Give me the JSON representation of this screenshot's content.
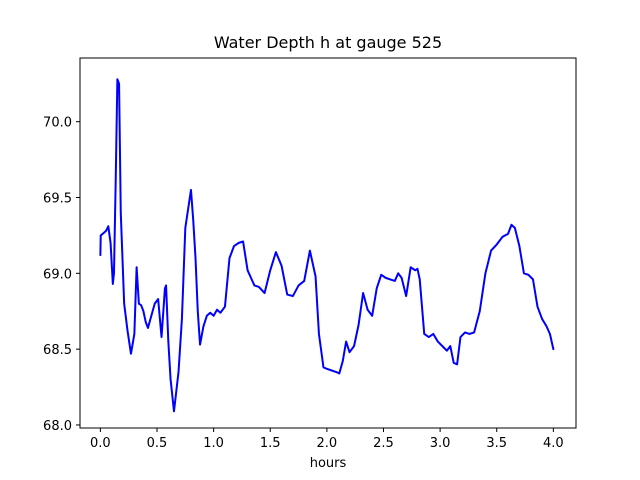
{
  "chart_data": {
    "type": "line",
    "title": "Water Depth h at gauge 525",
    "xlabel": "hours",
    "ylabel": "",
    "xlim": [
      -0.18,
      4.2
    ],
    "ylim": [
      67.98,
      70.42
    ],
    "xticks": [
      0.0,
      0.5,
      1.0,
      1.5,
      2.0,
      2.5,
      3.0,
      3.5,
      4.0
    ],
    "xtick_labels": [
      "0.0",
      "0.5",
      "1.0",
      "1.5",
      "2.0",
      "2.5",
      "3.0",
      "3.5",
      "4.0"
    ],
    "yticks": [
      68.0,
      68.5,
      69.0,
      69.5,
      70.0
    ],
    "ytick_labels": [
      "68.0",
      "68.5",
      "69.0",
      "69.5",
      "70.0"
    ],
    "grid": false,
    "series": [
      {
        "color": "#0000ff",
        "x": [
          0.0,
          0.003,
          0.02,
          0.05,
          0.07,
          0.09,
          0.11,
          0.12,
          0.135,
          0.15,
          0.165,
          0.18,
          0.21,
          0.24,
          0.27,
          0.3,
          0.32,
          0.34,
          0.36,
          0.38,
          0.4,
          0.42,
          0.45,
          0.48,
          0.51,
          0.54,
          0.57,
          0.58,
          0.6,
          0.62,
          0.65,
          0.69,
          0.72,
          0.75,
          0.78,
          0.8,
          0.82,
          0.84,
          0.86,
          0.88,
          0.91,
          0.94,
          0.97,
          1.0,
          1.03,
          1.06,
          1.1,
          1.14,
          1.18,
          1.22,
          1.26,
          1.3,
          1.33,
          1.36,
          1.4,
          1.45,
          1.5,
          1.55,
          1.6,
          1.65,
          1.7,
          1.75,
          1.8,
          1.85,
          1.9,
          1.93,
          1.97,
          2.0,
          2.04,
          2.08,
          2.11,
          2.14,
          2.17,
          2.2,
          2.24,
          2.28,
          2.32,
          2.36,
          2.4,
          2.44,
          2.48,
          2.52,
          2.56,
          2.6,
          2.63,
          2.66,
          2.7,
          2.74,
          2.78,
          2.8,
          2.82,
          2.86,
          2.9,
          2.94,
          2.98,
          3.02,
          3.06,
          3.09,
          3.12,
          3.15,
          3.18,
          3.22,
          3.26,
          3.3,
          3.35,
          3.4,
          3.45,
          3.5,
          3.55,
          3.6,
          3.63,
          3.66,
          3.7,
          3.74,
          3.78,
          3.82,
          3.86,
          3.9,
          3.94,
          3.97,
          4.0
        ],
        "y": [
          69.12,
          69.25,
          69.26,
          69.28,
          69.31,
          69.2,
          68.93,
          69.0,
          69.6,
          70.28,
          70.25,
          69.4,
          68.8,
          68.62,
          68.47,
          68.6,
          69.04,
          68.8,
          68.79,
          68.75,
          68.68,
          68.64,
          68.72,
          68.8,
          68.83,
          68.58,
          68.9,
          68.92,
          68.55,
          68.3,
          68.09,
          68.35,
          68.7,
          69.3,
          69.45,
          69.55,
          69.35,
          69.1,
          68.75,
          68.53,
          68.65,
          68.72,
          68.74,
          68.72,
          68.76,
          68.74,
          68.78,
          69.1,
          69.18,
          69.2,
          69.21,
          69.02,
          68.97,
          68.92,
          68.91,
          68.87,
          69.02,
          69.14,
          69.05,
          68.86,
          68.85,
          68.92,
          68.95,
          69.15,
          68.98,
          68.6,
          68.38,
          68.37,
          68.36,
          68.35,
          68.34,
          68.42,
          68.55,
          68.48,
          68.52,
          68.66,
          68.87,
          68.76,
          68.72,
          68.9,
          68.99,
          68.97,
          68.96,
          68.95,
          69.0,
          68.97,
          68.85,
          69.04,
          69.02,
          69.03,
          68.96,
          68.6,
          68.58,
          68.6,
          68.55,
          68.52,
          68.49,
          68.52,
          68.41,
          68.4,
          68.58,
          68.61,
          68.6,
          68.61,
          68.75,
          69.0,
          69.15,
          69.19,
          69.24,
          69.26,
          69.32,
          69.3,
          69.18,
          69.0,
          68.99,
          68.96,
          68.78,
          68.7,
          68.65,
          68.6,
          68.5
        ]
      }
    ]
  }
}
